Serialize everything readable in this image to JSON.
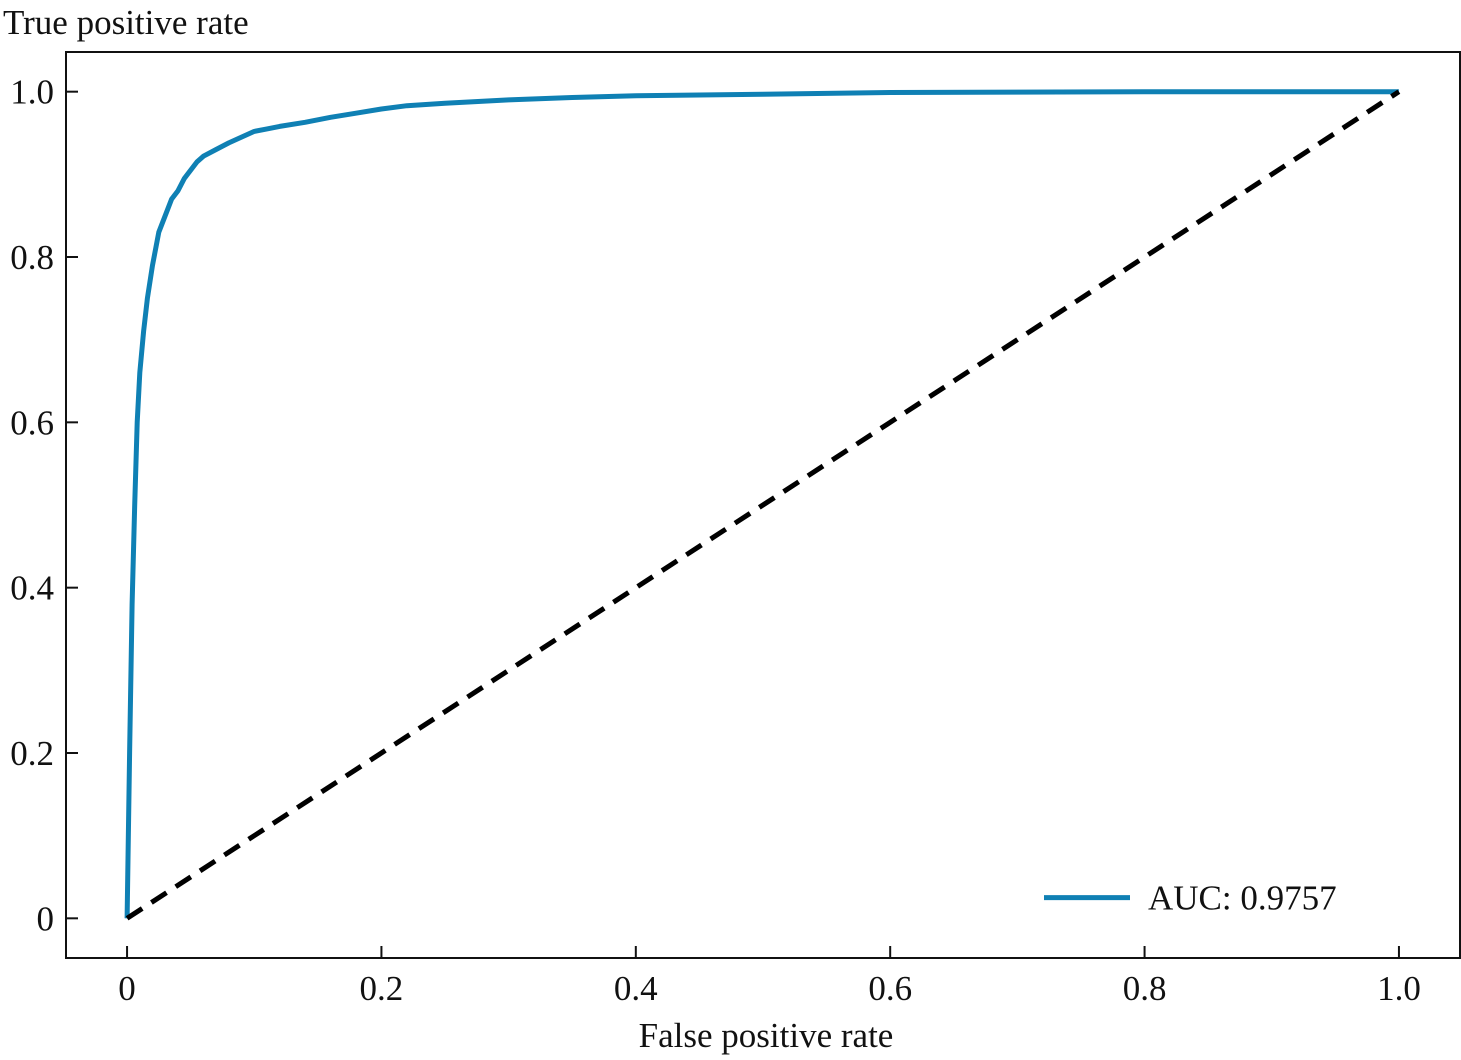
{
  "chart_data": {
    "type": "line",
    "title": "",
    "xlabel": "False positive rate",
    "ylabel": "True positive rate",
    "xlim": [
      -0.048,
      1.048
    ],
    "ylim": [
      -0.048,
      1.048
    ],
    "x_ticks": [
      0,
      0.2,
      0.4,
      0.6,
      0.8,
      1.0
    ],
    "x_tick_labels": [
      "0",
      "0.2",
      "0.4",
      "0.6",
      "0.8",
      "1.0"
    ],
    "y_ticks": [
      0,
      0.2,
      0.4,
      0.6,
      0.8,
      1.0
    ],
    "y_tick_labels": [
      "0",
      "0.2",
      "0.4",
      "0.6",
      "0.8",
      "1.0"
    ],
    "grid": false,
    "legend": {
      "position": "bottom-right",
      "entries": [
        "AUC: 0.9757"
      ]
    },
    "series": [
      {
        "name": "AUC: 0.9757",
        "color": "#0f80b4",
        "style": "solid",
        "x": [
          0,
          0.002,
          0.004,
          0.006,
          0.008,
          0.01,
          0.013,
          0.016,
          0.02,
          0.025,
          0.03,
          0.035,
          0.04,
          0.045,
          0.05,
          0.055,
          0.06,
          0.07,
          0.08,
          0.09,
          0.1,
          0.11,
          0.12,
          0.14,
          0.16,
          0.18,
          0.2,
          0.22,
          0.25,
          0.3,
          0.35,
          0.4,
          0.5,
          0.6,
          0.7,
          0.8,
          0.9,
          1.0
        ],
        "y": [
          0,
          0.2,
          0.38,
          0.5,
          0.6,
          0.66,
          0.71,
          0.75,
          0.79,
          0.83,
          0.85,
          0.87,
          0.88,
          0.895,
          0.905,
          0.915,
          0.922,
          0.93,
          0.938,
          0.945,
          0.952,
          0.955,
          0.958,
          0.963,
          0.969,
          0.974,
          0.979,
          0.983,
          0.986,
          0.99,
          0.993,
          0.995,
          0.997,
          0.999,
          0.9995,
          0.9998,
          0.9999,
          1.0
        ]
      },
      {
        "name": "",
        "color": "#000000",
        "style": "dashed",
        "x": [
          0,
          1
        ],
        "y": [
          0,
          1
        ]
      }
    ]
  }
}
